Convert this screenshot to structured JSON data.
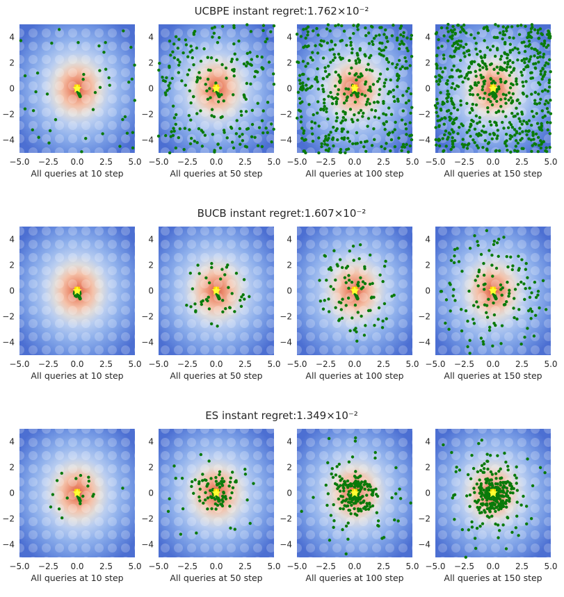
{
  "rows": [
    {
      "method": "UCBPE",
      "title": "UCBPE instant regret:1.762×10⁻²",
      "spread": "uniform"
    },
    {
      "method": "BUCB",
      "title": "BUCB instant regret:1.607×10⁻²",
      "spread": "center"
    },
    {
      "method": "ES",
      "title": "ES instant regret:1.349×10⁻²",
      "spread": "cluster"
    }
  ],
  "steps": [
    10,
    50,
    100,
    150
  ],
  "xlabels": [
    "All queries at 10 step",
    "All queries at 50 step",
    "All queries at 100 step",
    "All queries at 150 step"
  ],
  "chart_data": {
    "type": "scatter",
    "description_axes": "each panel: heatmap of objective over x,y in [-5,5] with query points overlaid",
    "xlim": [
      -5,
      5
    ],
    "ylim": [
      -5,
      5
    ],
    "xticks": [
      "−5.0",
      "−2.5",
      "0.0",
      "2.5",
      "5.0"
    ],
    "yticks": [
      "4",
      "2",
      "0",
      "−2",
      "−4"
    ],
    "ytick_values": [
      4,
      2,
      0,
      -2,
      -4
    ],
    "xtick_values": [
      -5,
      -2.5,
      0,
      2.5,
      5
    ],
    "optimum": {
      "x": 0.0,
      "y": 0.0,
      "marker": "star",
      "color": "#ffff33"
    },
    "best_query": {
      "x": 0.0,
      "y": 0.1,
      "marker": "square",
      "color": "#ffd700"
    },
    "query_color": "#0a7a0a",
    "colormap": "coolwarm",
    "grid": false
  }
}
